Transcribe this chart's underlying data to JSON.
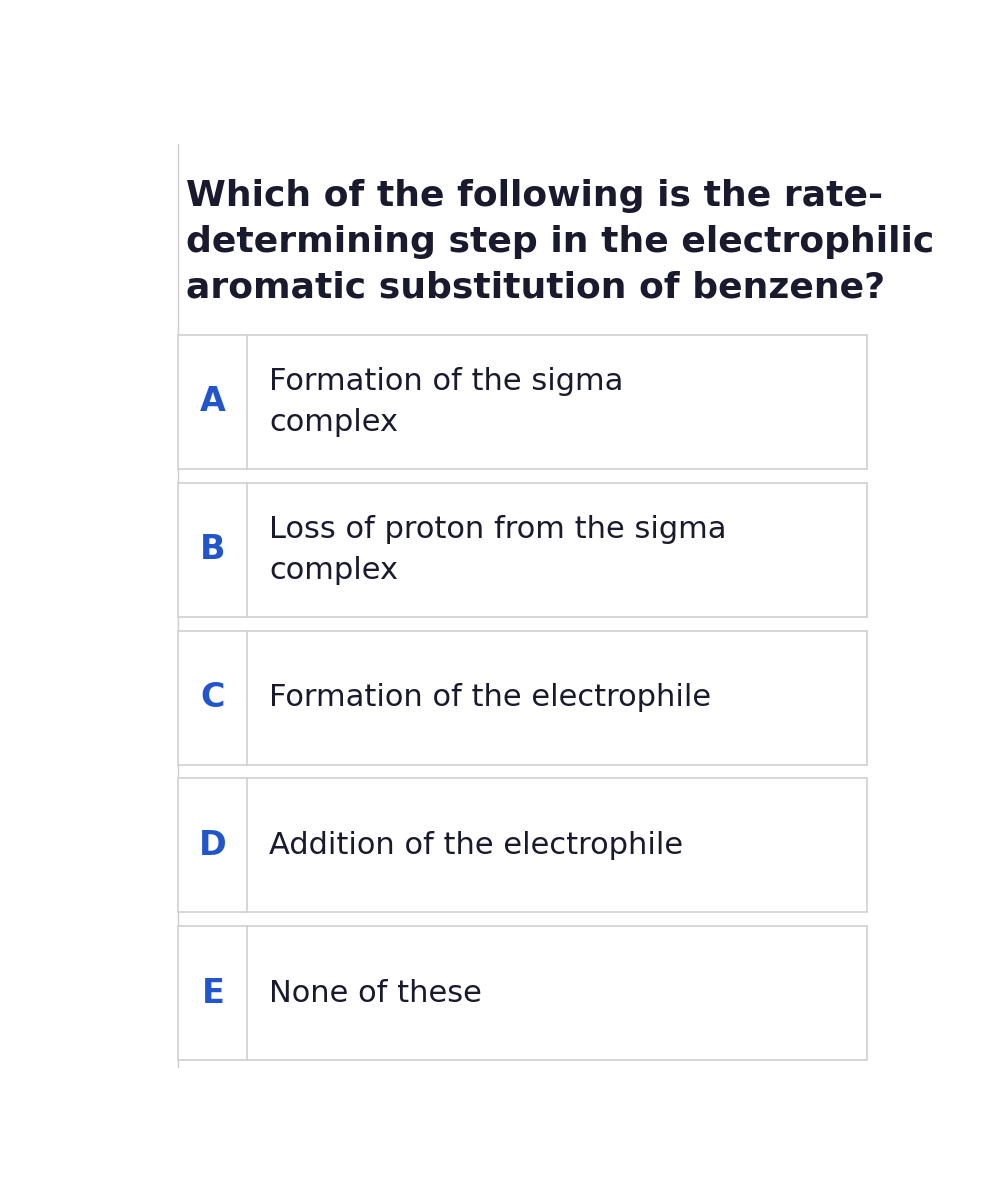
{
  "question": "Which of the following is the rate-\ndetermining step in the electrophilic\naromatic substitution of benzene?",
  "options": [
    {
      "letter": "A",
      "text": "Formation of the sigma\ncomplex"
    },
    {
      "letter": "B",
      "text": "Loss of proton from the sigma\ncomplex"
    },
    {
      "letter": "C",
      "text": "Formation of the electrophile"
    },
    {
      "letter": "D",
      "text": "Addition of the electrophile"
    },
    {
      "letter": "E",
      "text": "None of these"
    }
  ],
  "bg_color": "#ffffff",
  "card_bg": "#ffffff",
  "card_border": "#d0d0d0",
  "letter_color": "#2255CC",
  "text_color": "#1a1a2e",
  "question_color": "#1a1a2e",
  "divider_color": "#d0d0d0",
  "outer_bg": "#ffffff",
  "left_line_color": "#cccccc",
  "question_fontsize": 26,
  "option_letter_fontsize": 24,
  "option_text_fontsize": 22
}
